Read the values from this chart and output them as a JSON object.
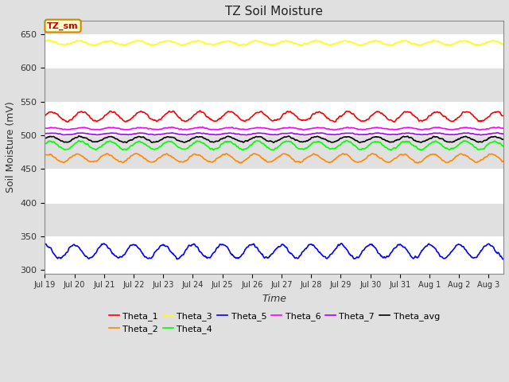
{
  "title": "TZ Soil Moisture",
  "xlabel": "Time",
  "ylabel": "Soil Moisture (mV)",
  "ylim": [
    295,
    670
  ],
  "yticks": [
    300,
    350,
    400,
    450,
    500,
    550,
    600,
    650
  ],
  "background_color": "#e0e0e0",
  "plot_bg_color": "#e0e0e0",
  "label_box_text": "TZ_sm",
  "label_box_color": "#ffffcc",
  "label_box_border": "#cc8800",
  "label_box_text_color": "#cc0000",
  "num_days": 15.5,
  "hours_per_day": 24,
  "lines": [
    {
      "name": "Theta_1",
      "color": "#ff0000",
      "mean": 528,
      "amp": 7,
      "phase": 0.0,
      "freq": 1.0,
      "noise": 1.2
    },
    {
      "name": "Theta_2",
      "color": "#ff8800",
      "mean": 466,
      "amp": 6,
      "phase": 0.3,
      "freq": 1.0,
      "noise": 1.0
    },
    {
      "name": "Theta_3",
      "color": "#ffff00",
      "mean": 637,
      "amp": 3,
      "phase": 0.2,
      "freq": 1.0,
      "noise": 0.8
    },
    {
      "name": "Theta_4",
      "color": "#00ff00",
      "mean": 485,
      "amp": 6,
      "phase": 0.1,
      "freq": 1.0,
      "noise": 1.0
    },
    {
      "name": "Theta_5",
      "color": "#0000ff",
      "mean": 328,
      "amp": 10,
      "phase": 0.5,
      "freq": 1.0,
      "noise": 1.5
    },
    {
      "name": "Theta_6",
      "color": "#ff00ff",
      "mean": 510,
      "amp": 1.5,
      "phase": 0.0,
      "freq": 1.0,
      "noise": 0.5
    },
    {
      "name": "Theta_7",
      "color": "#aa00ff",
      "mean": 502,
      "amp": 1.2,
      "phase": 0.0,
      "freq": 1.0,
      "noise": 0.4
    },
    {
      "name": "Theta_avg",
      "color": "#000000",
      "mean": 494,
      "amp": 4,
      "phase": 0.1,
      "freq": 1.0,
      "noise": 0.8
    }
  ],
  "xtick_labels": [
    "Jul 19",
    "Jul 20",
    "Jul 21",
    "Jul 22",
    "Jul 23",
    "Jul 24",
    "Jul 25",
    "Jul 26",
    "Jul 27",
    "Jul 28",
    "Jul 29",
    "Jul 30",
    "Jul 31",
    "Aug 1",
    "Aug 2",
    "Aug 3"
  ],
  "legend_order": [
    "Theta_1",
    "Theta_2",
    "Theta_3",
    "Theta_4",
    "Theta_5",
    "Theta_6",
    "Theta_7",
    "Theta_avg"
  ],
  "legend_colors": [
    "#ff0000",
    "#ff8800",
    "#ffff00",
    "#00ff00",
    "#0000ff",
    "#ff00ff",
    "#aa00ff",
    "#000000"
  ],
  "stripe_colors": [
    "#ffffff",
    "#e0e0e0"
  ]
}
